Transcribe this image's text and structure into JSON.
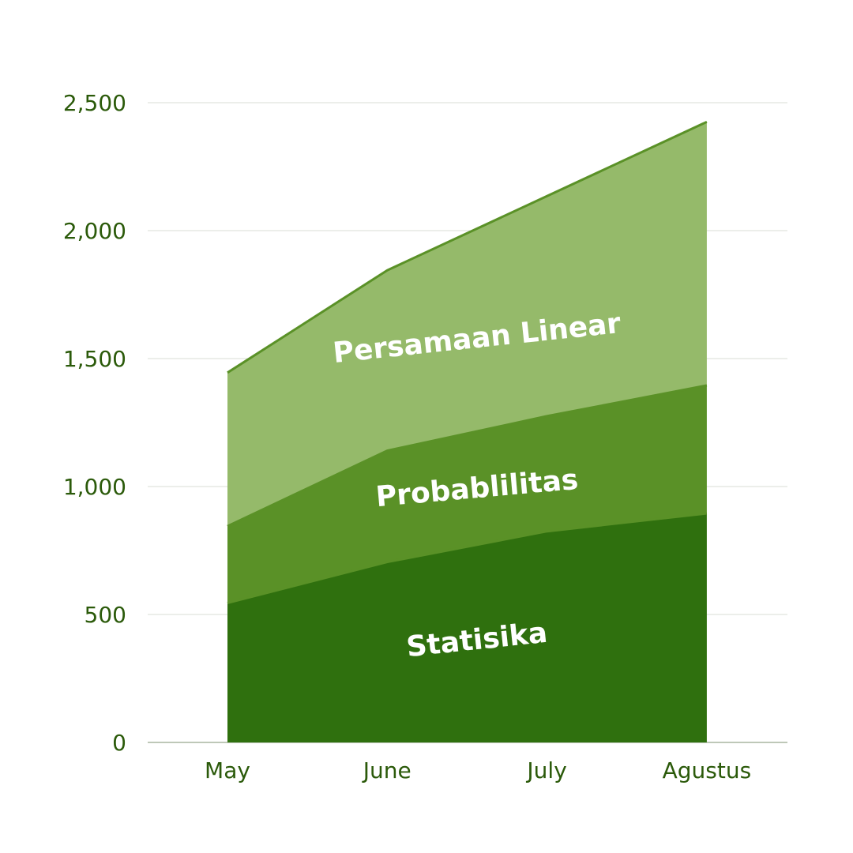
{
  "chart_data": {
    "type": "area",
    "stacked": true,
    "categories": [
      "May",
      "June",
      "July",
      "Agustus"
    ],
    "series": [
      {
        "name": "Statisika",
        "values": [
          545,
          705,
          825,
          895
        ],
        "color": "#2f700e"
      },
      {
        "name": "Probablilitas",
        "values": [
          300,
          435,
          450,
          500
        ],
        "color": "#5a9127"
      },
      {
        "name": "Persamaan Linear",
        "values": [
          600,
          705,
          860,
          1030
        ],
        "color": "#95ba6a"
      }
    ],
    "y_ticks": [
      "0",
      "500",
      "1,000",
      "1,500",
      "2,000",
      "2,500"
    ],
    "ylim": [
      0,
      2500
    ],
    "grid": true,
    "line_color": "#5a9127",
    "gridline_color": "#d9ded4",
    "axis_color": "#a8b5a0",
    "label_color": "#2b5a0a"
  }
}
